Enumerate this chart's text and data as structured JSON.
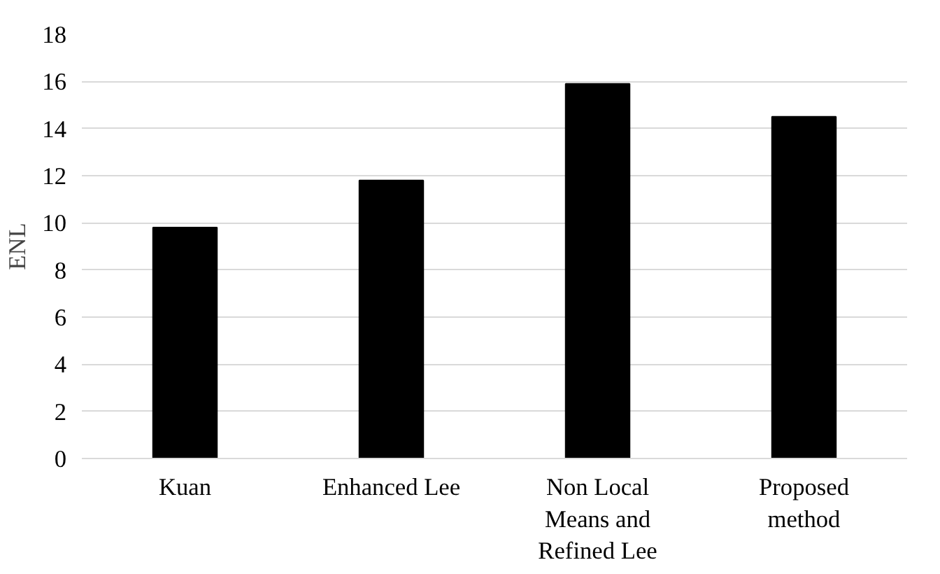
{
  "chart_data": {
    "type": "bar",
    "ylabel": "ENL",
    "categories": [
      "Kuan",
      "Enhanced Lee",
      "Non Local Means and Refined Lee",
      "Proposed method"
    ],
    "values": [
      9.8,
      11.8,
      15.9,
      14.5
    ],
    "color": "#000000",
    "ylim": [
      0,
      18
    ],
    "yticks": [
      0,
      2,
      4,
      6,
      8,
      10,
      12,
      14,
      16,
      18
    ],
    "grid": "y"
  }
}
